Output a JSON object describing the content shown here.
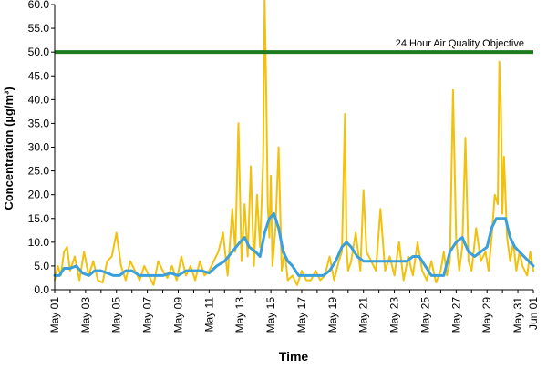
{
  "chart_data": {
    "type": "line",
    "xlabel": "Time",
    "ylabel": "Concentration (µg/m³)",
    "ylim": [
      0,
      60
    ],
    "y_ticks": [
      "0.0",
      "5.0",
      "10.0",
      "15.0",
      "20.0",
      "25.0",
      "30.0",
      "35.0",
      "40.0",
      "45.0",
      "50.0",
      "55.0",
      "60.0"
    ],
    "x_ticks": [
      "May 01",
      "May 03",
      "May 05",
      "May 07",
      "May 09",
      "May 11",
      "May 13",
      "May 15",
      "May 17",
      "May 19",
      "May 21",
      "May 23",
      "May 25",
      "May 27",
      "May 29",
      "May 31",
      "Jun 01"
    ],
    "grid": false,
    "objective": {
      "label": "24 Hour Air Quality Objective",
      "value": 50.0,
      "color": "#1e7b1e"
    },
    "series": [
      {
        "kind": "hourly",
        "color": "#f2c10e",
        "x": [
          1.0,
          1.2,
          1.4,
          1.6,
          1.8,
          2.0,
          2.3,
          2.6,
          2.9,
          3.2,
          3.5,
          3.8,
          4.1,
          4.4,
          4.7,
          5.0,
          5.3,
          5.6,
          5.9,
          6.2,
          6.5,
          6.8,
          7.1,
          7.4,
          7.7,
          8.0,
          8.3,
          8.6,
          8.9,
          9.2,
          9.5,
          9.8,
          10.1,
          10.4,
          10.7,
          11.0,
          11.3,
          11.6,
          11.9,
          12.2,
          12.5,
          12.7,
          12.9,
          13.1,
          13.3,
          13.5,
          13.7,
          13.9,
          14.1,
          14.3,
          14.5,
          14.6,
          14.7,
          14.8,
          14.9,
          15.0,
          15.1,
          15.3,
          15.5,
          15.7,
          15.9,
          16.1,
          16.4,
          16.7,
          17.0,
          17.3,
          17.6,
          17.9,
          18.2,
          18.5,
          18.8,
          19.1,
          19.4,
          19.6,
          19.8,
          19.9,
          20.0,
          20.2,
          20.5,
          20.8,
          21.0,
          21.2,
          21.5,
          21.8,
          22.1,
          22.4,
          22.7,
          23.0,
          23.3,
          23.6,
          23.9,
          24.2,
          24.5,
          24.8,
          25.1,
          25.4,
          25.7,
          26.0,
          26.2,
          26.4,
          26.6,
          26.8,
          27.0,
          27.2,
          27.4,
          27.6,
          27.8,
          28.0,
          28.3,
          28.6,
          28.9,
          29.1,
          29.3,
          29.5,
          29.7,
          29.8,
          29.9,
          30.0,
          30.1,
          30.3,
          30.5,
          30.7,
          30.9,
          31.1,
          31.3,
          31.6,
          31.8,
          32.0
        ],
        "y": [
          2.0,
          5.0,
          3.0,
          8.0,
          9.0,
          4.0,
          7.0,
          2.0,
          8.0,
          3.0,
          6.0,
          2.0,
          1.5,
          6.0,
          7.0,
          12.0,
          5.0,
          2.0,
          6.0,
          4.0,
          2.0,
          5.0,
          3.0,
          1.0,
          6.0,
          4.0,
          2.5,
          5.0,
          2.0,
          7.0,
          3.0,
          5.0,
          2.0,
          6.0,
          3.0,
          4.0,
          6.0,
          8.0,
          12.0,
          3.0,
          17.0,
          8.0,
          35.0,
          6.0,
          18.0,
          7.0,
          26.0,
          5.0,
          20.0,
          9.0,
          27.0,
          61.0,
          42.0,
          18.0,
          11.0,
          24.0,
          5.0,
          13.0,
          30.0,
          4.0,
          8.0,
          2.0,
          3.0,
          1.0,
          4.0,
          2.0,
          2.0,
          4.0,
          2.0,
          3.0,
          7.0,
          2.0,
          6.0,
          8.0,
          37.0,
          9.0,
          4.0,
          6.0,
          12.0,
          4.0,
          21.0,
          8.0,
          6.0,
          4.0,
          17.0,
          4.0,
          7.0,
          3.0,
          10.0,
          2.0,
          7.0,
          3.0,
          10.0,
          4.0,
          2.0,
          6.0,
          1.5,
          4.0,
          8.0,
          3.0,
          6.0,
          42.0,
          11.0,
          4.0,
          9.0,
          32.0,
          6.0,
          4.0,
          13.0,
          6.0,
          8.0,
          4.0,
          11.0,
          20.0,
          18.0,
          48.0,
          39.0,
          16.0,
          28.0,
          11.0,
          6.0,
          10.0,
          4.0,
          8.0,
          5.0,
          3.0,
          8.0,
          4.0
        ]
      },
      {
        "kind": "rolling",
        "color": "#3aa0dd",
        "x": [
          1.0,
          1.3,
          1.6,
          2.0,
          2.4,
          2.8,
          3.2,
          3.6,
          4.0,
          4.4,
          4.8,
          5.2,
          5.6,
          6.0,
          6.5,
          7.0,
          7.5,
          8.0,
          8.5,
          9.0,
          9.5,
          10.0,
          10.5,
          11.0,
          11.5,
          12.0,
          12.5,
          13.0,
          13.3,
          13.6,
          14.0,
          14.3,
          14.6,
          14.9,
          15.2,
          15.5,
          15.8,
          16.1,
          16.4,
          16.8,
          17.2,
          17.6,
          18.0,
          18.4,
          18.8,
          19.2,
          19.6,
          19.9,
          20.2,
          20.6,
          21.0,
          21.4,
          21.8,
          22.2,
          22.6,
          23.0,
          23.4,
          23.8,
          24.2,
          24.6,
          25.0,
          25.4,
          25.8,
          26.2,
          26.6,
          27.0,
          27.4,
          27.8,
          28.2,
          28.6,
          29.0,
          29.3,
          29.6,
          29.9,
          30.2,
          30.5,
          30.8,
          31.1,
          31.4,
          31.7,
          32.0
        ],
        "y": [
          3.0,
          3.0,
          4.5,
          4.5,
          5.0,
          3.5,
          3.0,
          4.0,
          4.0,
          3.5,
          3.0,
          3.0,
          4.0,
          4.0,
          3.0,
          3.0,
          3.0,
          3.0,
          3.5,
          3.0,
          4.0,
          4.0,
          4.0,
          3.5,
          5.0,
          6.0,
          8.0,
          10.0,
          11.0,
          9.0,
          8.0,
          7.0,
          12.0,
          15.0,
          16.0,
          13.0,
          8.0,
          6.0,
          5.0,
          3.0,
          3.0,
          3.0,
          3.0,
          3.0,
          4.0,
          6.0,
          9.0,
          10.0,
          9.0,
          7.0,
          6.0,
          6.0,
          6.0,
          6.0,
          6.0,
          6.0,
          6.0,
          6.0,
          7.0,
          7.0,
          5.0,
          3.0,
          3.0,
          3.0,
          8.0,
          10.0,
          11.0,
          8.0,
          7.0,
          8.0,
          9.0,
          13.0,
          15.0,
          15.0,
          15.0,
          11.0,
          9.0,
          8.0,
          7.0,
          6.0,
          5.0
        ]
      }
    ]
  }
}
